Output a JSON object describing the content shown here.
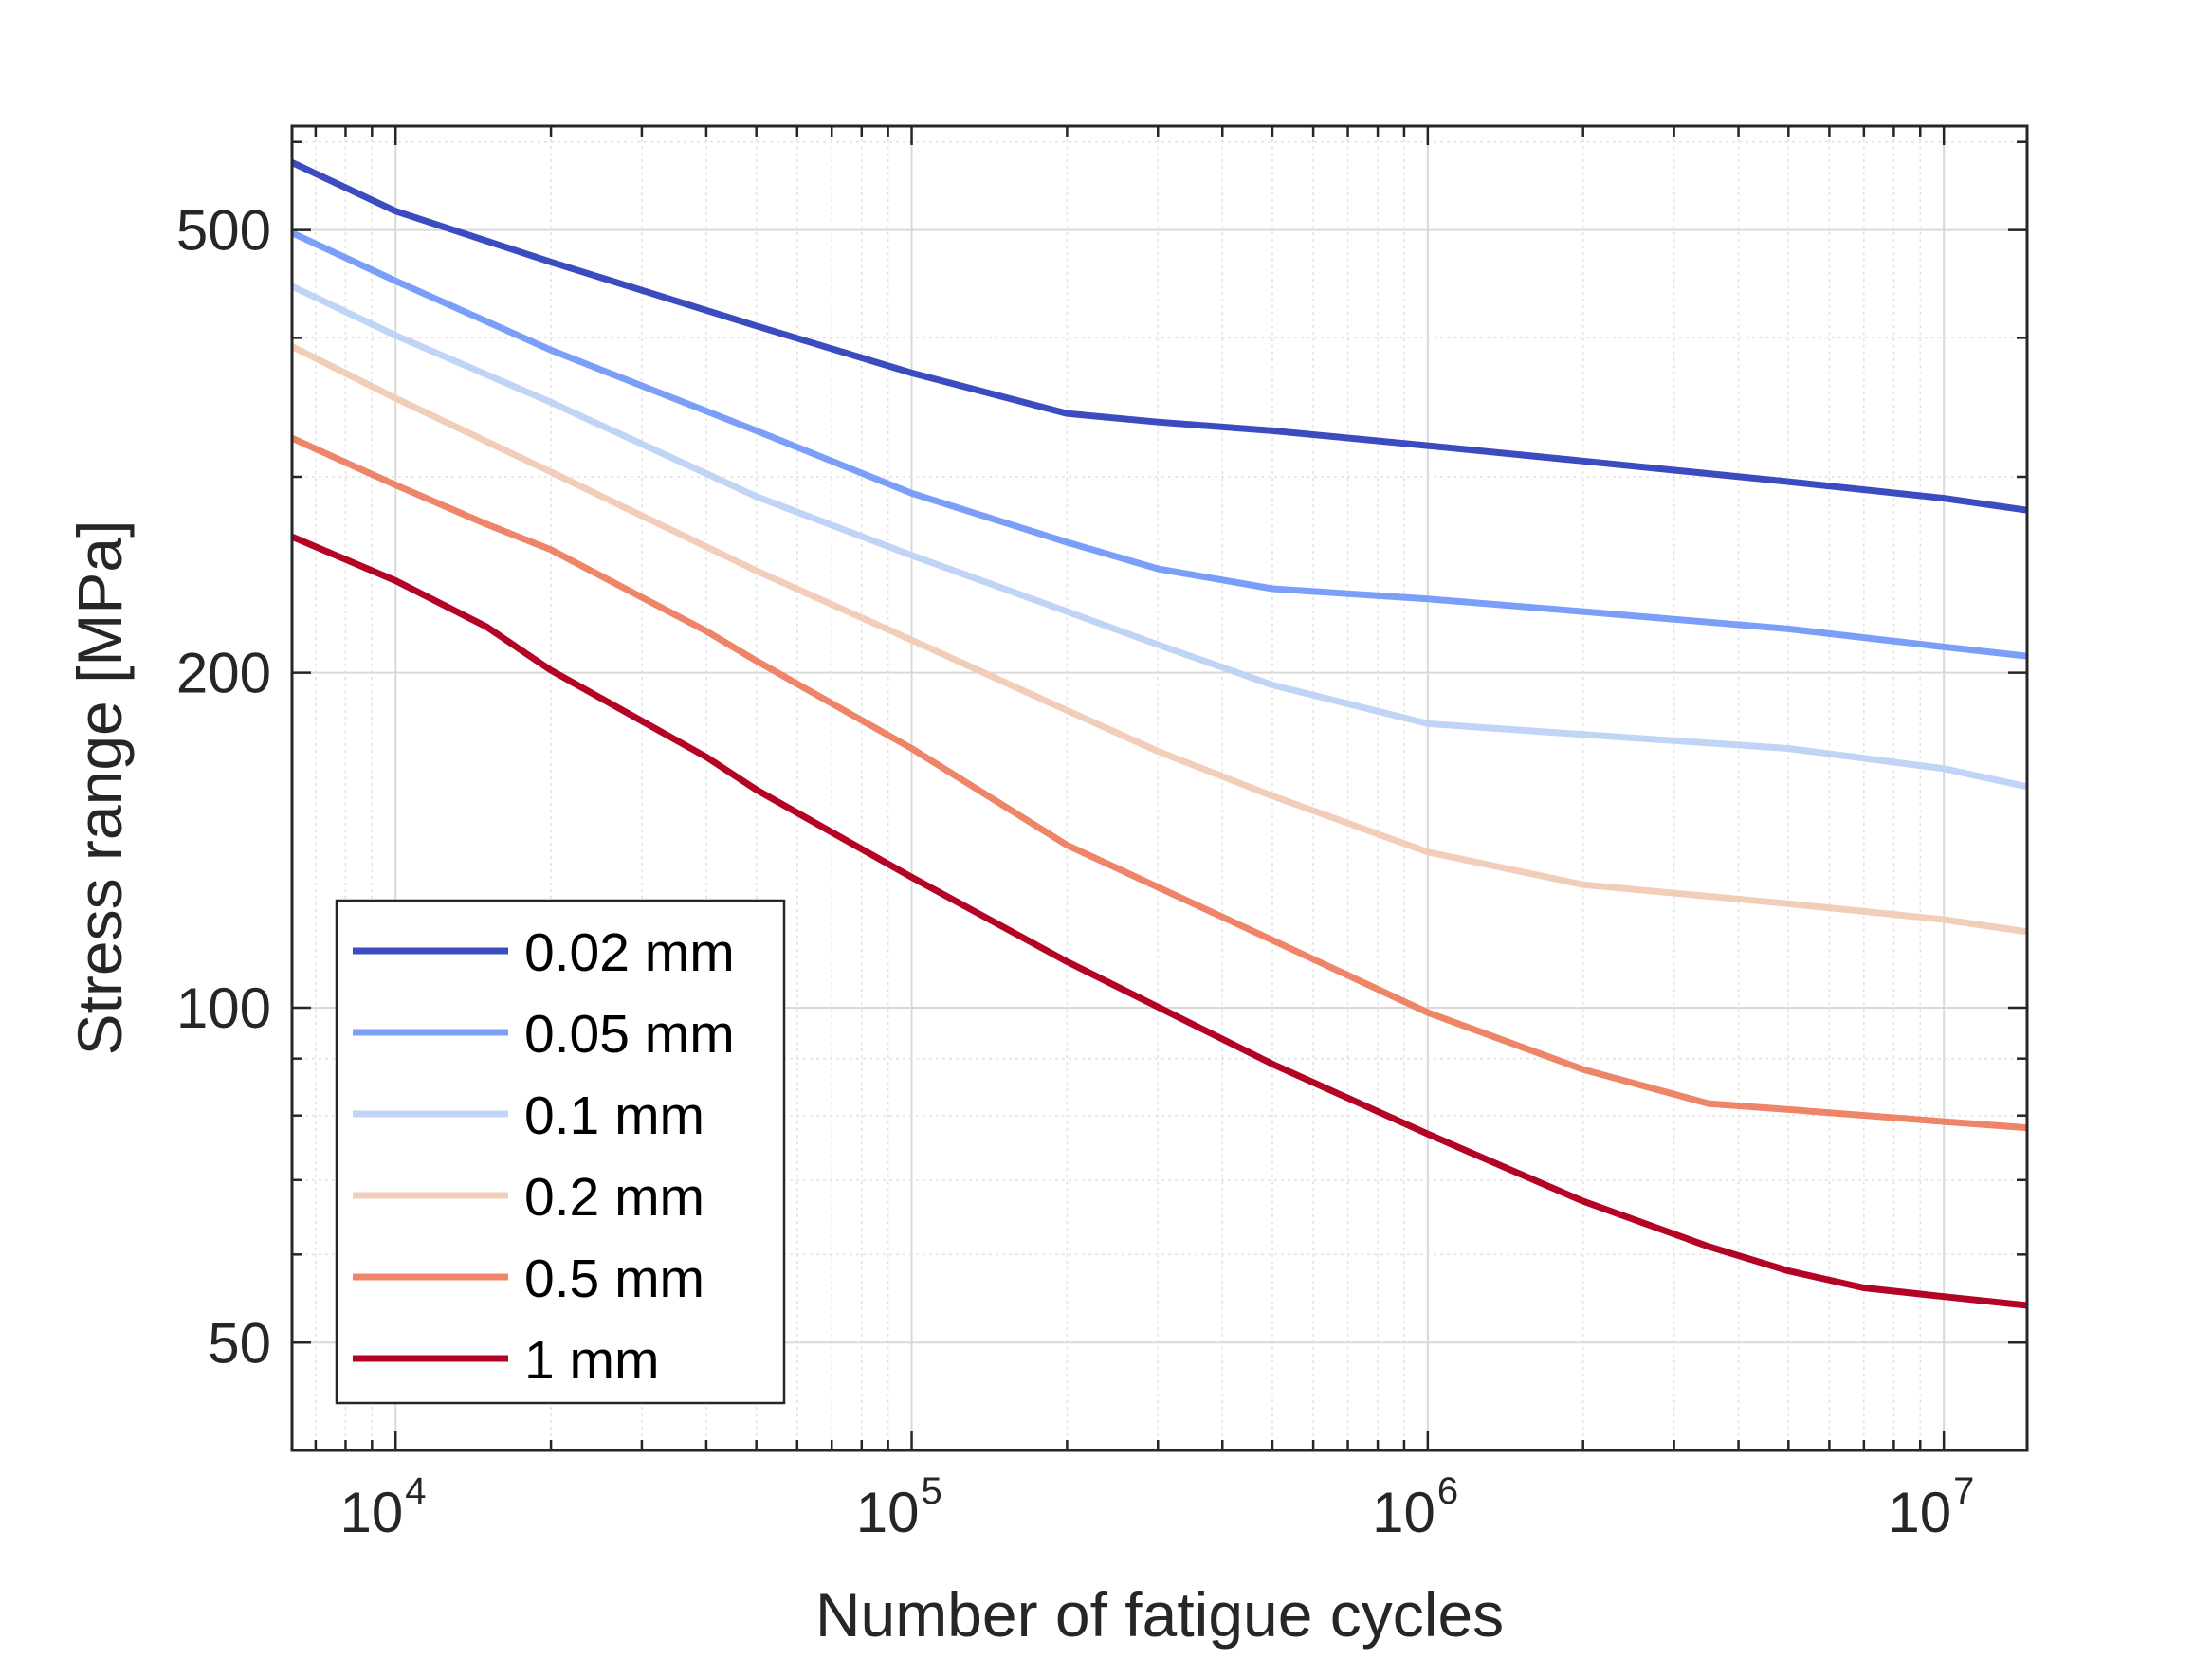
{
  "chart_data": {
    "type": "line",
    "title": "",
    "xlabel": "Number of fatigue cycles",
    "ylabel": "Stress range [MPa]",
    "xscale": "log",
    "yscale": "log",
    "xlim": [
      6300,
      14500000
    ],
    "ylim": [
      40,
      620
    ],
    "grid": true,
    "minor_grid": true,
    "legend_position": "bottom-left",
    "x_ticks": [
      {
        "base": "10",
        "exp": "4",
        "value": 10000
      },
      {
        "base": "10",
        "exp": "5",
        "value": 100000
      },
      {
        "base": "10",
        "exp": "6",
        "value": 1000000
      },
      {
        "base": "10",
        "exp": "7",
        "value": 10000000
      }
    ],
    "y_ticks": [
      {
        "label": "50",
        "value": 50
      },
      {
        "label": "100",
        "value": 100
      },
      {
        "label": "200",
        "value": 200
      },
      {
        "label": "500",
        "value": 500
      }
    ],
    "series": [
      {
        "name": "0.02 mm",
        "color": "#3a4cc0",
        "x": [
          6300,
          10000,
          20000,
          50000,
          100000,
          200000,
          300000,
          500000,
          1000000,
          2000000,
          5000000,
          10000000,
          14500000
        ],
        "y": [
          575,
          520,
          468,
          410,
          372,
          342,
          336,
          330,
          320,
          310,
          297,
          287,
          280
        ]
      },
      {
        "name": "0.05 mm",
        "color": "#7b9ff9",
        "x": [
          6300,
          10000,
          20000,
          50000,
          100000,
          200000,
          300000,
          500000,
          1000000,
          2000000,
          5000000,
          10000000,
          14500000
        ],
        "y": [
          497,
          450,
          390,
          330,
          290,
          262,
          248,
          238,
          233,
          227,
          219,
          211,
          207
        ]
      },
      {
        "name": "0.1 mm",
        "color": "#c0d4f5",
        "x": [
          6300,
          10000,
          20000,
          50000,
          100000,
          200000,
          300000,
          500000,
          1000000,
          2000000,
          5000000,
          10000000,
          14500000
        ],
        "y": [
          445,
          402,
          350,
          288,
          255,
          227,
          212,
          195,
          180,
          176,
          171,
          164,
          158
        ]
      },
      {
        "name": "0.2 mm",
        "color": "#f1cdba",
        "x": [
          6300,
          10000,
          20000,
          50000,
          100000,
          200000,
          300000,
          500000,
          1000000,
          2000000,
          5000000,
          10000000,
          14500000
        ],
        "y": [
          393,
          353,
          303,
          247,
          214,
          185,
          170,
          155,
          138,
          129,
          124,
          120,
          117
        ]
      },
      {
        "name": "0.5 mm",
        "color": "#ee8468",
        "x": [
          6300,
          10000,
          15000,
          20000,
          40000,
          50000,
          100000,
          200000,
          500000,
          1000000,
          2000000,
          3500000,
          5000000,
          10000000,
          14500000
        ],
        "y": [
          325,
          295,
          272,
          258,
          218,
          205,
          171,
          140,
          115,
          99,
          88,
          82,
          81,
          79,
          78
        ]
      },
      {
        "name": "1 mm",
        "color": "#b40426",
        "x": [
          6300,
          10000,
          15000,
          20000,
          40000,
          50000,
          100000,
          200000,
          500000,
          1000000,
          2000000,
          3500000,
          5000000,
          7000000,
          10000000,
          14500000
        ],
        "y": [
          265,
          242,
          220,
          201,
          168,
          157,
          131,
          110,
          89,
          77,
          67,
          61,
          58,
          56,
          55,
          54
        ]
      }
    ]
  }
}
